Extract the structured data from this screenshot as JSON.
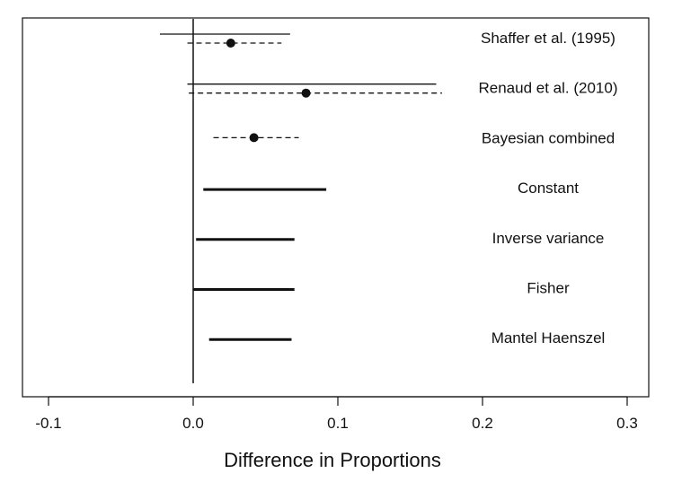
{
  "chart_data": {
    "type": "forest",
    "xlabel": "Difference in Proportions",
    "xlim": [
      -0.12,
      0.315
    ],
    "xticks": [
      -0.1,
      0.0,
      0.1,
      0.2,
      0.3
    ],
    "xtick_labels": [
      "-0.1",
      "0.0",
      "0.1",
      "0.2",
      "0.3"
    ],
    "reference_line_x": 0.0,
    "grid": false,
    "rows": [
      {
        "label": "Shaffer et al. (1995)",
        "intervals": [
          {
            "style": "solid-thin",
            "low": -0.023,
            "high": 0.067
          },
          {
            "style": "dashed",
            "low": -0.004,
            "high": 0.061,
            "point": 0.026
          }
        ]
      },
      {
        "label": "Renaud et al. (2010)",
        "intervals": [
          {
            "style": "solid-thin",
            "low": -0.004,
            "high": 0.168
          },
          {
            "style": "dashed",
            "low": -0.003,
            "high": 0.172,
            "point": 0.078
          }
        ]
      },
      {
        "label": "Bayesian combined",
        "intervals": [
          {
            "style": "dashed",
            "low": 0.014,
            "high": 0.073,
            "point": 0.042
          }
        ]
      },
      {
        "label": "Constant",
        "intervals": [
          {
            "style": "solid-thick",
            "low": 0.007,
            "high": 0.092
          }
        ]
      },
      {
        "label": "Inverse variance",
        "intervals": [
          {
            "style": "solid-thick",
            "low": 0.002,
            "high": 0.07
          }
        ]
      },
      {
        "label": "Fisher",
        "intervals": [
          {
            "style": "solid-thick",
            "low": 0.0,
            "high": 0.07
          }
        ]
      },
      {
        "label": "Mantel Haenszel",
        "intervals": [
          {
            "style": "solid-thick",
            "low": 0.011,
            "high": 0.068
          }
        ]
      }
    ]
  }
}
